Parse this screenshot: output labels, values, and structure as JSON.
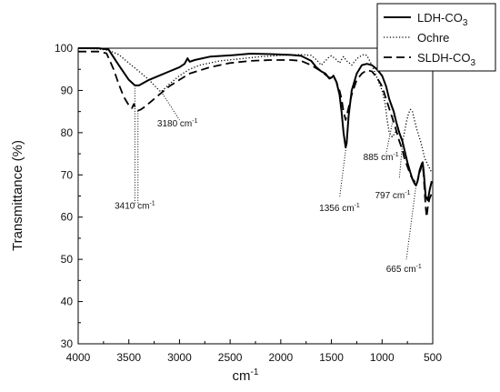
{
  "chart_data": {
    "type": "line",
    "title": "",
    "xlabel": "cm",
    "xlabel_sup": "-1",
    "ylabel": "Transmittance (%)",
    "xlim": [
      4000,
      500
    ],
    "ylim": [
      30,
      100
    ],
    "x_ticks": [
      4000,
      3500,
      3000,
      2500,
      2000,
      1500,
      1000,
      500
    ],
    "y_ticks": [
      30,
      40,
      50,
      60,
      70,
      80,
      90,
      100
    ],
    "grid": false,
    "legend_position": "top-right",
    "series": [
      {
        "name_main": "LDH-CO",
        "name_sub": "3",
        "style": "solid",
        "points": [
          [
            4000,
            100
          ],
          [
            3800,
            100
          ],
          [
            3700,
            99.7
          ],
          [
            3600,
            96
          ],
          [
            3500,
            92.5
          ],
          [
            3440,
            91.2
          ],
          [
            3400,
            91.2
          ],
          [
            3300,
            92.5
          ],
          [
            3200,
            93.5
          ],
          [
            3100,
            94.5
          ],
          [
            3000,
            95.5
          ],
          [
            2950,
            96.3
          ],
          [
            2920,
            97.6
          ],
          [
            2900,
            96.8
          ],
          [
            2850,
            97.2
          ],
          [
            2700,
            98
          ],
          [
            2500,
            98.3
          ],
          [
            2300,
            98.7
          ],
          [
            2100,
            98.6
          ],
          [
            1900,
            98.4
          ],
          [
            1800,
            98.2
          ],
          [
            1700,
            97
          ],
          [
            1650,
            95.5
          ],
          [
            1600,
            94.5
          ],
          [
            1560,
            94
          ],
          [
            1520,
            92.8
          ],
          [
            1500,
            93
          ],
          [
            1480,
            93.5
          ],
          [
            1450,
            92
          ],
          [
            1420,
            89
          ],
          [
            1400,
            85
          ],
          [
            1380,
            80
          ],
          [
            1360,
            76.5
          ],
          [
            1350,
            77.5
          ],
          [
            1330,
            84
          ],
          [
            1300,
            90
          ],
          [
            1250,
            94
          ],
          [
            1200,
            96
          ],
          [
            1150,
            96.3
          ],
          [
            1100,
            96
          ],
          [
            1050,
            95
          ],
          [
            1000,
            93.5
          ],
          [
            960,
            91
          ],
          [
            930,
            88
          ],
          [
            900,
            86
          ],
          [
            885,
            85
          ],
          [
            860,
            82.5
          ],
          [
            830,
            80
          ],
          [
            800,
            78
          ],
          [
            780,
            76
          ],
          [
            750,
            73
          ],
          [
            720,
            70.5
          ],
          [
            700,
            69
          ],
          [
            680,
            68
          ],
          [
            665,
            67.5
          ],
          [
            650,
            68.5
          ],
          [
            630,
            71
          ],
          [
            610,
            72.5
          ],
          [
            600,
            73
          ],
          [
            590,
            71
          ],
          [
            580,
            68
          ],
          [
            570,
            65
          ],
          [
            560,
            64.5
          ],
          [
            550,
            64
          ],
          [
            540,
            65
          ],
          [
            530,
            66.5
          ],
          [
            520,
            67.5
          ],
          [
            510,
            68.5
          ]
        ]
      },
      {
        "name_main": "Ochre",
        "name_sub": "",
        "style": "dotted",
        "points": [
          [
            4000,
            100
          ],
          [
            3800,
            99.8
          ],
          [
            3700,
            99.5
          ],
          [
            3600,
            98.5
          ],
          [
            3500,
            96.5
          ],
          [
            3400,
            94.5
          ],
          [
            3300,
            92.5
          ],
          [
            3200,
            90
          ],
          [
            3180,
            89.7
          ],
          [
            3100,
            91.5
          ],
          [
            3000,
            93.5
          ],
          [
            2900,
            95
          ],
          [
            2800,
            96
          ],
          [
            2600,
            97
          ],
          [
            2400,
            97.5
          ],
          [
            2200,
            98
          ],
          [
            2000,
            98.3
          ],
          [
            1800,
            98.5
          ],
          [
            1700,
            98.3
          ],
          [
            1650,
            97.3
          ],
          [
            1600,
            96
          ],
          [
            1560,
            97
          ],
          [
            1520,
            98
          ],
          [
            1500,
            98.2
          ],
          [
            1460,
            97.5
          ],
          [
            1420,
            96.5
          ],
          [
            1400,
            97.3
          ],
          [
            1380,
            98
          ],
          [
            1350,
            97
          ],
          [
            1300,
            96
          ],
          [
            1250,
            97.5
          ],
          [
            1200,
            98.3
          ],
          [
            1180,
            98.5
          ],
          [
            1150,
            98.3
          ],
          [
            1100,
            96
          ],
          [
            1050,
            93
          ],
          [
            1000,
            90
          ],
          [
            970,
            87
          ],
          [
            950,
            83
          ],
          [
            930,
            80
          ],
          [
            900,
            79
          ],
          [
            870,
            80
          ],
          [
            850,
            82
          ],
          [
            820,
            79.5
          ],
          [
            797,
            78
          ],
          [
            780,
            80
          ],
          [
            760,
            82.5
          ],
          [
            740,
            84.5
          ],
          [
            720,
            85.5
          ],
          [
            700,
            85
          ],
          [
            680,
            83
          ],
          [
            660,
            81
          ],
          [
            640,
            79.5
          ],
          [
            620,
            78
          ],
          [
            600,
            76
          ],
          [
            580,
            74
          ],
          [
            560,
            73
          ],
          [
            540,
            72
          ],
          [
            520,
            71
          ],
          [
            510,
            70.5
          ]
        ]
      },
      {
        "name_main": "SLDH-CO",
        "name_sub": "3",
        "style": "dashed",
        "points": [
          [
            4000,
            99.2
          ],
          [
            3800,
            99.2
          ],
          [
            3720,
            98.8
          ],
          [
            3650,
            95
          ],
          [
            3600,
            91.5
          ],
          [
            3550,
            88.5
          ],
          [
            3500,
            86.5
          ],
          [
            3470,
            85.8
          ],
          [
            3450,
            86.8
          ],
          [
            3430,
            85.5
          ],
          [
            3410,
            85.2
          ],
          [
            3380,
            85.5
          ],
          [
            3350,
            86
          ],
          [
            3300,
            87
          ],
          [
            3200,
            89
          ],
          [
            3100,
            91
          ],
          [
            3000,
            92.5
          ],
          [
            2900,
            94
          ],
          [
            2700,
            95.5
          ],
          [
            2500,
            96.5
          ],
          [
            2300,
            97
          ],
          [
            2100,
            97.2
          ],
          [
            1900,
            97.2
          ],
          [
            1800,
            97
          ],
          [
            1700,
            96
          ],
          [
            1600,
            94.5
          ],
          [
            1520,
            93
          ],
          [
            1480,
            93.3
          ],
          [
            1450,
            92
          ],
          [
            1420,
            90
          ],
          [
            1400,
            88
          ],
          [
            1380,
            85
          ],
          [
            1360,
            83
          ],
          [
            1340,
            85
          ],
          [
            1300,
            89
          ],
          [
            1250,
            92.5
          ],
          [
            1200,
            94
          ],
          [
            1150,
            94.8
          ],
          [
            1100,
            94.5
          ],
          [
            1050,
            93
          ],
          [
            1000,
            91
          ],
          [
            960,
            88
          ],
          [
            920,
            85
          ],
          [
            885,
            82.5
          ],
          [
            860,
            80.5
          ],
          [
            830,
            78
          ],
          [
            800,
            76
          ],
          [
            780,
            74
          ],
          [
            750,
            72
          ],
          [
            720,
            70
          ],
          [
            700,
            69
          ],
          [
            680,
            68.5
          ],
          [
            665,
            67.5
          ],
          [
            650,
            68.5
          ],
          [
            630,
            70.5
          ],
          [
            610,
            72
          ],
          [
            600,
            72.5
          ],
          [
            590,
            70
          ],
          [
            580,
            66
          ],
          [
            570,
            62.5
          ],
          [
            560,
            60
          ],
          [
            550,
            62
          ],
          [
            540,
            63.5
          ],
          [
            530,
            64.5
          ],
          [
            520,
            65
          ],
          [
            510,
            66
          ]
        ]
      }
    ],
    "annotations": [
      {
        "id": "a3410",
        "value": "3410",
        "unit": "cm",
        "sup": "-1",
        "style": "dotted",
        "lines": [
          [
            [
              3440,
              91.2
            ],
            [
              3440,
              63
            ]
          ],
          [
            [
              3410,
              85.2
            ],
            [
              3410,
              63
            ]
          ]
        ],
        "label_at": [
          3440,
          62
        ],
        "anchor": "middle"
      },
      {
        "id": "a3180",
        "value": "3180",
        "unit": "cm",
        "sup": "-1",
        "style": "dotted",
        "lines": [
          [
            [
              3180,
              89.7
            ],
            [
              3000,
              83
            ]
          ]
        ],
        "label_at": [
          3020,
          81.5
        ],
        "anchor": "middle"
      },
      {
        "id": "a1356",
        "value": "1356",
        "unit": "cm",
        "sup": "-1",
        "style": "dotted",
        "lines": [
          [
            [
              1356,
              76.5
            ],
            [
              1420,
              64.5
            ]
          ]
        ],
        "label_at": [
          1420,
          61.5
        ],
        "anchor": "middle"
      },
      {
        "id": "a885",
        "value": "885",
        "unit": "cm",
        "sup": "-1",
        "style": "dotted",
        "lines": [
          [
            [
              885,
              84
            ],
            [
              960,
              75
            ]
          ]
        ],
        "label_at": [
          1010,
          73.5
        ],
        "anchor": "middle"
      },
      {
        "id": "a797",
        "value": "797",
        "unit": "cm",
        "sup": "-1",
        "style": "dotted",
        "lines": [
          [
            [
              797,
              78
            ],
            [
              830,
              69
            ]
          ]
        ],
        "label_at": [
          895,
          64.5
        ],
        "anchor": "middle"
      },
      {
        "id": "a665",
        "value": "665",
        "unit": "cm",
        "sup": "-1",
        "style": "dotted",
        "lines": [
          [
            [
              665,
              67.5
            ],
            [
              760,
              50
            ]
          ]
        ],
        "label_at": [
          785,
          47
        ],
        "anchor": "middle"
      }
    ]
  }
}
